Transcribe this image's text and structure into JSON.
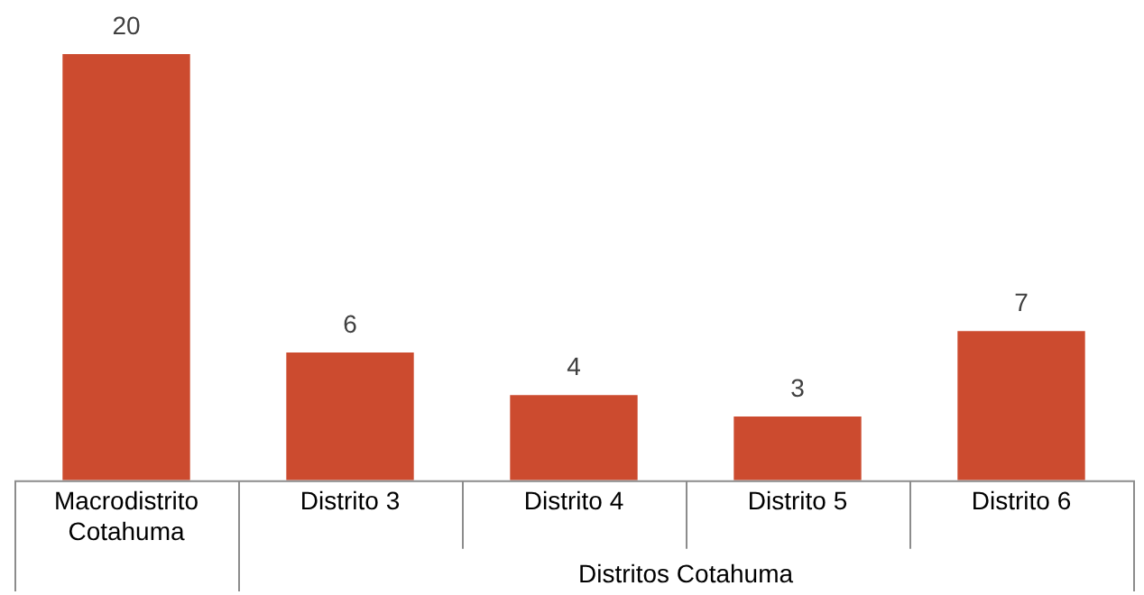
{
  "chart_data": {
    "type": "bar",
    "categories": [
      "Macrodistrito Cotahuma",
      "Distrito 3",
      "Distrito 4",
      "Distrito 5",
      "Distrito 6"
    ],
    "values": [
      20,
      6,
      4,
      3,
      7
    ],
    "color": "#cc4b2f",
    "data_labels": true,
    "annotations": [
      "Distritos Cotahuma"
    ]
  }
}
